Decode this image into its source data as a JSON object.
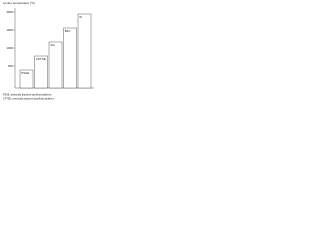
{
  "title": "Limiter temperature (°C)",
  "axis_ticks": [
    "2000",
    "1500",
    "1000",
    "500"
  ],
  "nodes": [
    {
      "label": "PSSE"
    },
    {
      "label": "CPTSE"
    },
    {
      "label": "SiC"
    },
    {
      "label": "B4C"
    },
    {
      "label": "W"
    }
  ],
  "notes": [
    "PSSE: physically attached sacrificial additives",
    "CPTSE: chemically attached sacrificial additives"
  ]
}
